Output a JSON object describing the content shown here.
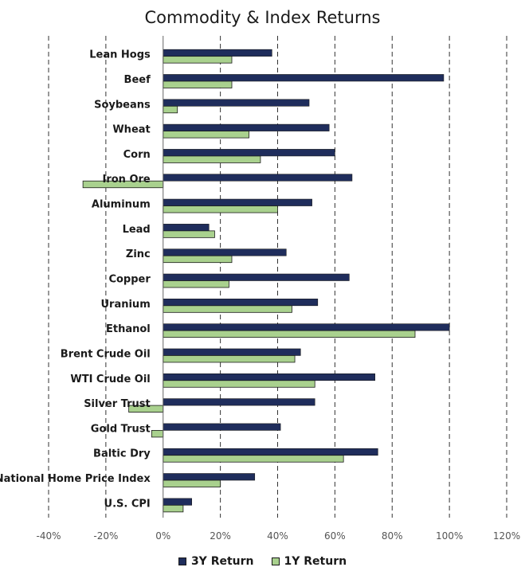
{
  "chart_data": {
    "type": "bar",
    "orientation": "horizontal",
    "title": "Commodity & Index Returns",
    "categories": [
      "Lean Hogs",
      "Beef",
      "Soybeans",
      "Wheat",
      "Corn",
      "Iron Ore",
      "Aluminum",
      "Lead",
      "Zinc",
      "Copper",
      "Uranium",
      "Ethanol",
      "Brent Crude Oil",
      "WTI Crude Oil",
      "Silver Trust",
      "Gold Trust",
      "Baltic Dry",
      "National Home Price Index",
      "U.S. CPI"
    ],
    "series": [
      {
        "name": "3Y Return",
        "color": "#1f2d5c",
        "values": [
          38,
          98,
          51,
          58,
          60,
          66,
          52,
          16,
          43,
          65,
          54,
          100,
          48,
          74,
          53,
          41,
          75,
          32,
          10
        ]
      },
      {
        "name": "1Y Return",
        "color": "#a9d18e",
        "values": [
          24,
          24,
          5,
          30,
          34,
          -28,
          40,
          18,
          24,
          23,
          45,
          88,
          46,
          53,
          -12,
          -4,
          63,
          20,
          7
        ]
      }
    ],
    "xlim": [
      -40,
      120
    ],
    "x_ticks": [
      -40,
      -20,
      0,
      20,
      40,
      60,
      80,
      100,
      120
    ],
    "x_tick_labels": [
      "-40%",
      "-20%",
      "0%",
      "20%",
      "40%",
      "60%",
      "80%",
      "100%",
      "120%"
    ],
    "grid": "vertical dashed",
    "legend_position": "bottom"
  }
}
